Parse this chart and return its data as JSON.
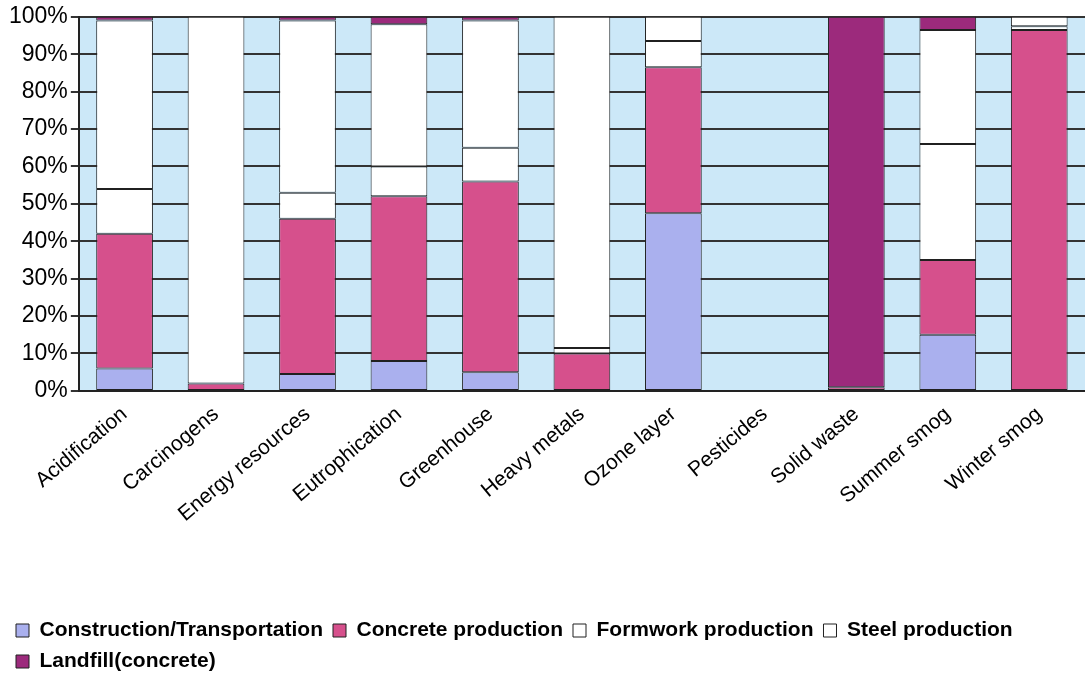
{
  "chart_data": {
    "type": "bar",
    "stacked": true,
    "categories": [
      "Acidification",
      "Carcinogens",
      "Energy resources",
      "Eutrophication",
      "Greenhouse",
      "Heavy metals",
      "Ozone layer",
      "Pesticides",
      "Solid waste",
      "Summer smog",
      "Winter smog"
    ],
    "series": [
      {
        "name": "Construction/Transportation",
        "color": "#aab0ee",
        "values": [
          6,
          0,
          4.5,
          8,
          5,
          0,
          47.5,
          0,
          0,
          15,
          0
        ]
      },
      {
        "name": "Concrete production",
        "color": "#d6508c",
        "values": [
          36,
          2,
          41.5,
          44,
          51,
          10,
          39,
          0,
          1,
          20,
          96.5
        ]
      },
      {
        "name": "Formwork production",
        "color": "#ffffff",
        "values": [
          12,
          0,
          7,
          8,
          9,
          1.5,
          7,
          0,
          0,
          31,
          1
        ]
      },
      {
        "name": "Steel production",
        "color": "#ffffff",
        "values": [
          45,
          98,
          46,
          38,
          34,
          88.5,
          6.5,
          0,
          0,
          30.5,
          2.5
        ]
      },
      {
        "name": "Landfill(concrete)",
        "color": "#9c2a7c",
        "values": [
          1,
          0,
          1,
          2,
          1,
          0,
          0,
          0,
          99,
          3.5,
          0
        ]
      }
    ],
    "ylim": [
      0,
      100
    ],
    "yticks": [
      {
        "value": 0,
        "label": "0%"
      },
      {
        "value": 10,
        "label": "10%"
      },
      {
        "value": 20,
        "label": "20%"
      },
      {
        "value": 30,
        "label": "30%"
      },
      {
        "value": 40,
        "label": "40%"
      },
      {
        "value": 50,
        "label": "50%"
      },
      {
        "value": 60,
        "label": "60%"
      },
      {
        "value": 70,
        "label": "70%"
      },
      {
        "value": 80,
        "label": "80%"
      },
      {
        "value": 90,
        "label": "90%"
      },
      {
        "value": 100,
        "label": "100%"
      }
    ],
    "grid": "y",
    "legend": "bottom"
  }
}
